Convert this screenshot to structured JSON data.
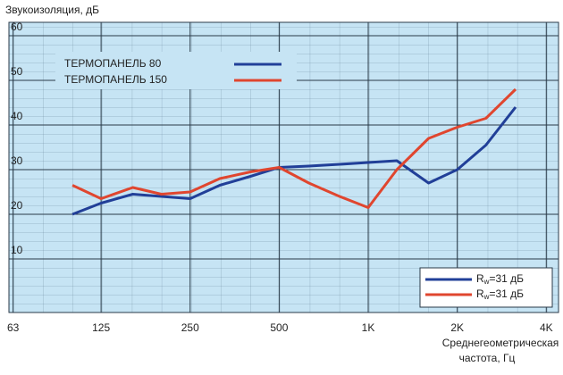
{
  "chart_data": {
    "type": "line",
    "y_label": "Звукоизоляция, дБ",
    "x_label": [
      "Среднегеометрическая",
      "частота, Гц"
    ],
    "x": [
      100,
      125,
      160,
      200,
      250,
      315,
      400,
      500,
      630,
      800,
      1000,
      1250,
      1600,
      2000,
      2500,
      3150
    ],
    "xscale": "log",
    "xlim": [
      61,
      4400
    ],
    "xticks": [
      63,
      125,
      250,
      500,
      {
        "value": 1000,
        "label": "1K"
      },
      {
        "value": 2000,
        "label": "2K"
      },
      {
        "value": 4000,
        "label": "4K"
      }
    ],
    "ylim": [
      -2,
      63
    ],
    "yticks": [
      10,
      20,
      30,
      40,
      50,
      60
    ],
    "grid": true,
    "background": "#c6e4f4",
    "series": [
      {
        "name": "ТЕРМОПАНЕЛЬ 80",
        "color": "#213f98",
        "values": [
          20,
          22.5,
          24.5,
          24,
          23.5,
          26.5,
          28.5,
          30.5,
          30.8,
          31.2,
          31.6,
          32,
          27,
          30,
          35.5,
          44
        ]
      },
      {
        "name": "ТЕРМОПАНЕЛЬ 150",
        "color": "#e0462f",
        "values": [
          26.5,
          23.5,
          26,
          24.5,
          25,
          28,
          29.5,
          30.5,
          27,
          24,
          21.5,
          30,
          37,
          39.5,
          41.5,
          48
        ]
      }
    ],
    "rating_legend": [
      {
        "symbol": "R",
        "sub": "w",
        "text": "=31 дБ"
      },
      {
        "symbol": "R",
        "sub": "w",
        "text": "=31 дБ"
      }
    ]
  }
}
